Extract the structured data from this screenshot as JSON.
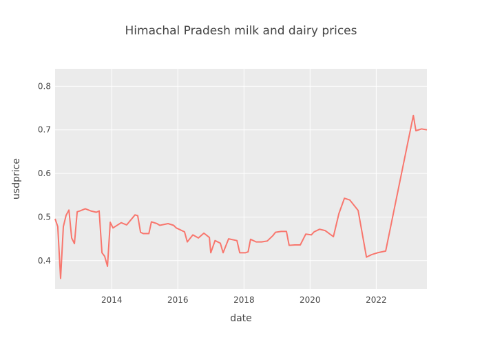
{
  "chart_data": {
    "type": "line",
    "title": "Himachal Pradesh milk and dairy prices",
    "xlabel": "date",
    "ylabel": "usdprice",
    "xlim": [
      "2012-04-15",
      "2023-07-15"
    ],
    "ylim": [
      0.335,
      0.84
    ],
    "x_ticks": [
      "2014",
      "2016",
      "2018",
      "2020",
      "2022"
    ],
    "y_ticks": [
      "0.4",
      "0.5",
      "0.6",
      "0.7",
      "0.8"
    ],
    "grid": true,
    "line_color": "#F8766D",
    "background": "#EBEBEB",
    "series": [
      {
        "points": [
          [
            "2012-04-15",
            0.496
          ],
          [
            "2012-05-15",
            0.478
          ],
          [
            "2012-06-15",
            0.359
          ],
          [
            "2012-07-15",
            0.478
          ],
          [
            "2012-08-15",
            0.504
          ],
          [
            "2012-09-15",
            0.516
          ],
          [
            "2012-10-15",
            0.452
          ],
          [
            "2012-11-15",
            0.439
          ],
          [
            "2012-12-15",
            0.512
          ],
          [
            "2013-01-15",
            0.514
          ],
          [
            "2013-03-15",
            0.519
          ],
          [
            "2013-05-15",
            0.514
          ],
          [
            "2013-07-15",
            0.511
          ],
          [
            "2013-08-15",
            0.514
          ],
          [
            "2013-09-15",
            0.418
          ],
          [
            "2013-10-15",
            0.41
          ],
          [
            "2013-11-15",
            0.387
          ],
          [
            "2013-12-15",
            0.488
          ],
          [
            "2014-01-15",
            0.475
          ],
          [
            "2014-04-15",
            0.487
          ],
          [
            "2014-06-15",
            0.482
          ],
          [
            "2014-09-15",
            0.505
          ],
          [
            "2014-10-15",
            0.503
          ],
          [
            "2014-11-15",
            0.465
          ],
          [
            "2014-12-15",
            0.462
          ],
          [
            "2015-02-15",
            0.462
          ],
          [
            "2015-03-15",
            0.489
          ],
          [
            "2015-05-15",
            0.485
          ],
          [
            "2015-06-15",
            0.481
          ],
          [
            "2015-09-15",
            0.485
          ],
          [
            "2015-11-15",
            0.481
          ],
          [
            "2015-12-15",
            0.475
          ],
          [
            "2016-03-15",
            0.466
          ],
          [
            "2016-04-15",
            0.443
          ],
          [
            "2016-06-15",
            0.459
          ],
          [
            "2016-08-15",
            0.452
          ],
          [
            "2016-10-15",
            0.463
          ],
          [
            "2016-12-15",
            0.453
          ],
          [
            "2016-12-30",
            0.418
          ],
          [
            "2017-02-15",
            0.446
          ],
          [
            "2017-04-15",
            0.44
          ],
          [
            "2017-05-15",
            0.418
          ],
          [
            "2017-07-15",
            0.45
          ],
          [
            "2017-10-15",
            0.446
          ],
          [
            "2017-11-15",
            0.418
          ],
          [
            "2018-01-15",
            0.418
          ],
          [
            "2018-02-15",
            0.42
          ],
          [
            "2018-03-15",
            0.449
          ],
          [
            "2018-05-15",
            0.443
          ],
          [
            "2018-07-15",
            0.443
          ],
          [
            "2018-09-15",
            0.445
          ],
          [
            "2018-11-15",
            0.457
          ],
          [
            "2018-12-15",
            0.465
          ],
          [
            "2019-02-15",
            0.467
          ],
          [
            "2019-04-15",
            0.467
          ],
          [
            "2019-05-15",
            0.435
          ],
          [
            "2019-07-15",
            0.436
          ],
          [
            "2019-09-15",
            0.436
          ],
          [
            "2019-11-15",
            0.461
          ],
          [
            "2020-01-15",
            0.459
          ],
          [
            "2020-02-15",
            0.466
          ],
          [
            "2020-04-15",
            0.472
          ],
          [
            "2020-06-15",
            0.469
          ],
          [
            "2020-09-15",
            0.455
          ],
          [
            "2020-11-15",
            0.508
          ],
          [
            "2021-01-15",
            0.543
          ],
          [
            "2021-03-15",
            0.539
          ],
          [
            "2021-06-15",
            0.515
          ],
          [
            "2021-09-15",
            0.408
          ],
          [
            "2021-11-15",
            0.414
          ],
          [
            "2022-01-15",
            0.418
          ],
          [
            "2022-04-15",
            0.422
          ],
          [
            "2023-02-15",
            0.733
          ],
          [
            "2023-03-15",
            0.698
          ],
          [
            "2023-05-15",
            0.702
          ],
          [
            "2023-07-15",
            0.7
          ]
        ]
      }
    ]
  }
}
